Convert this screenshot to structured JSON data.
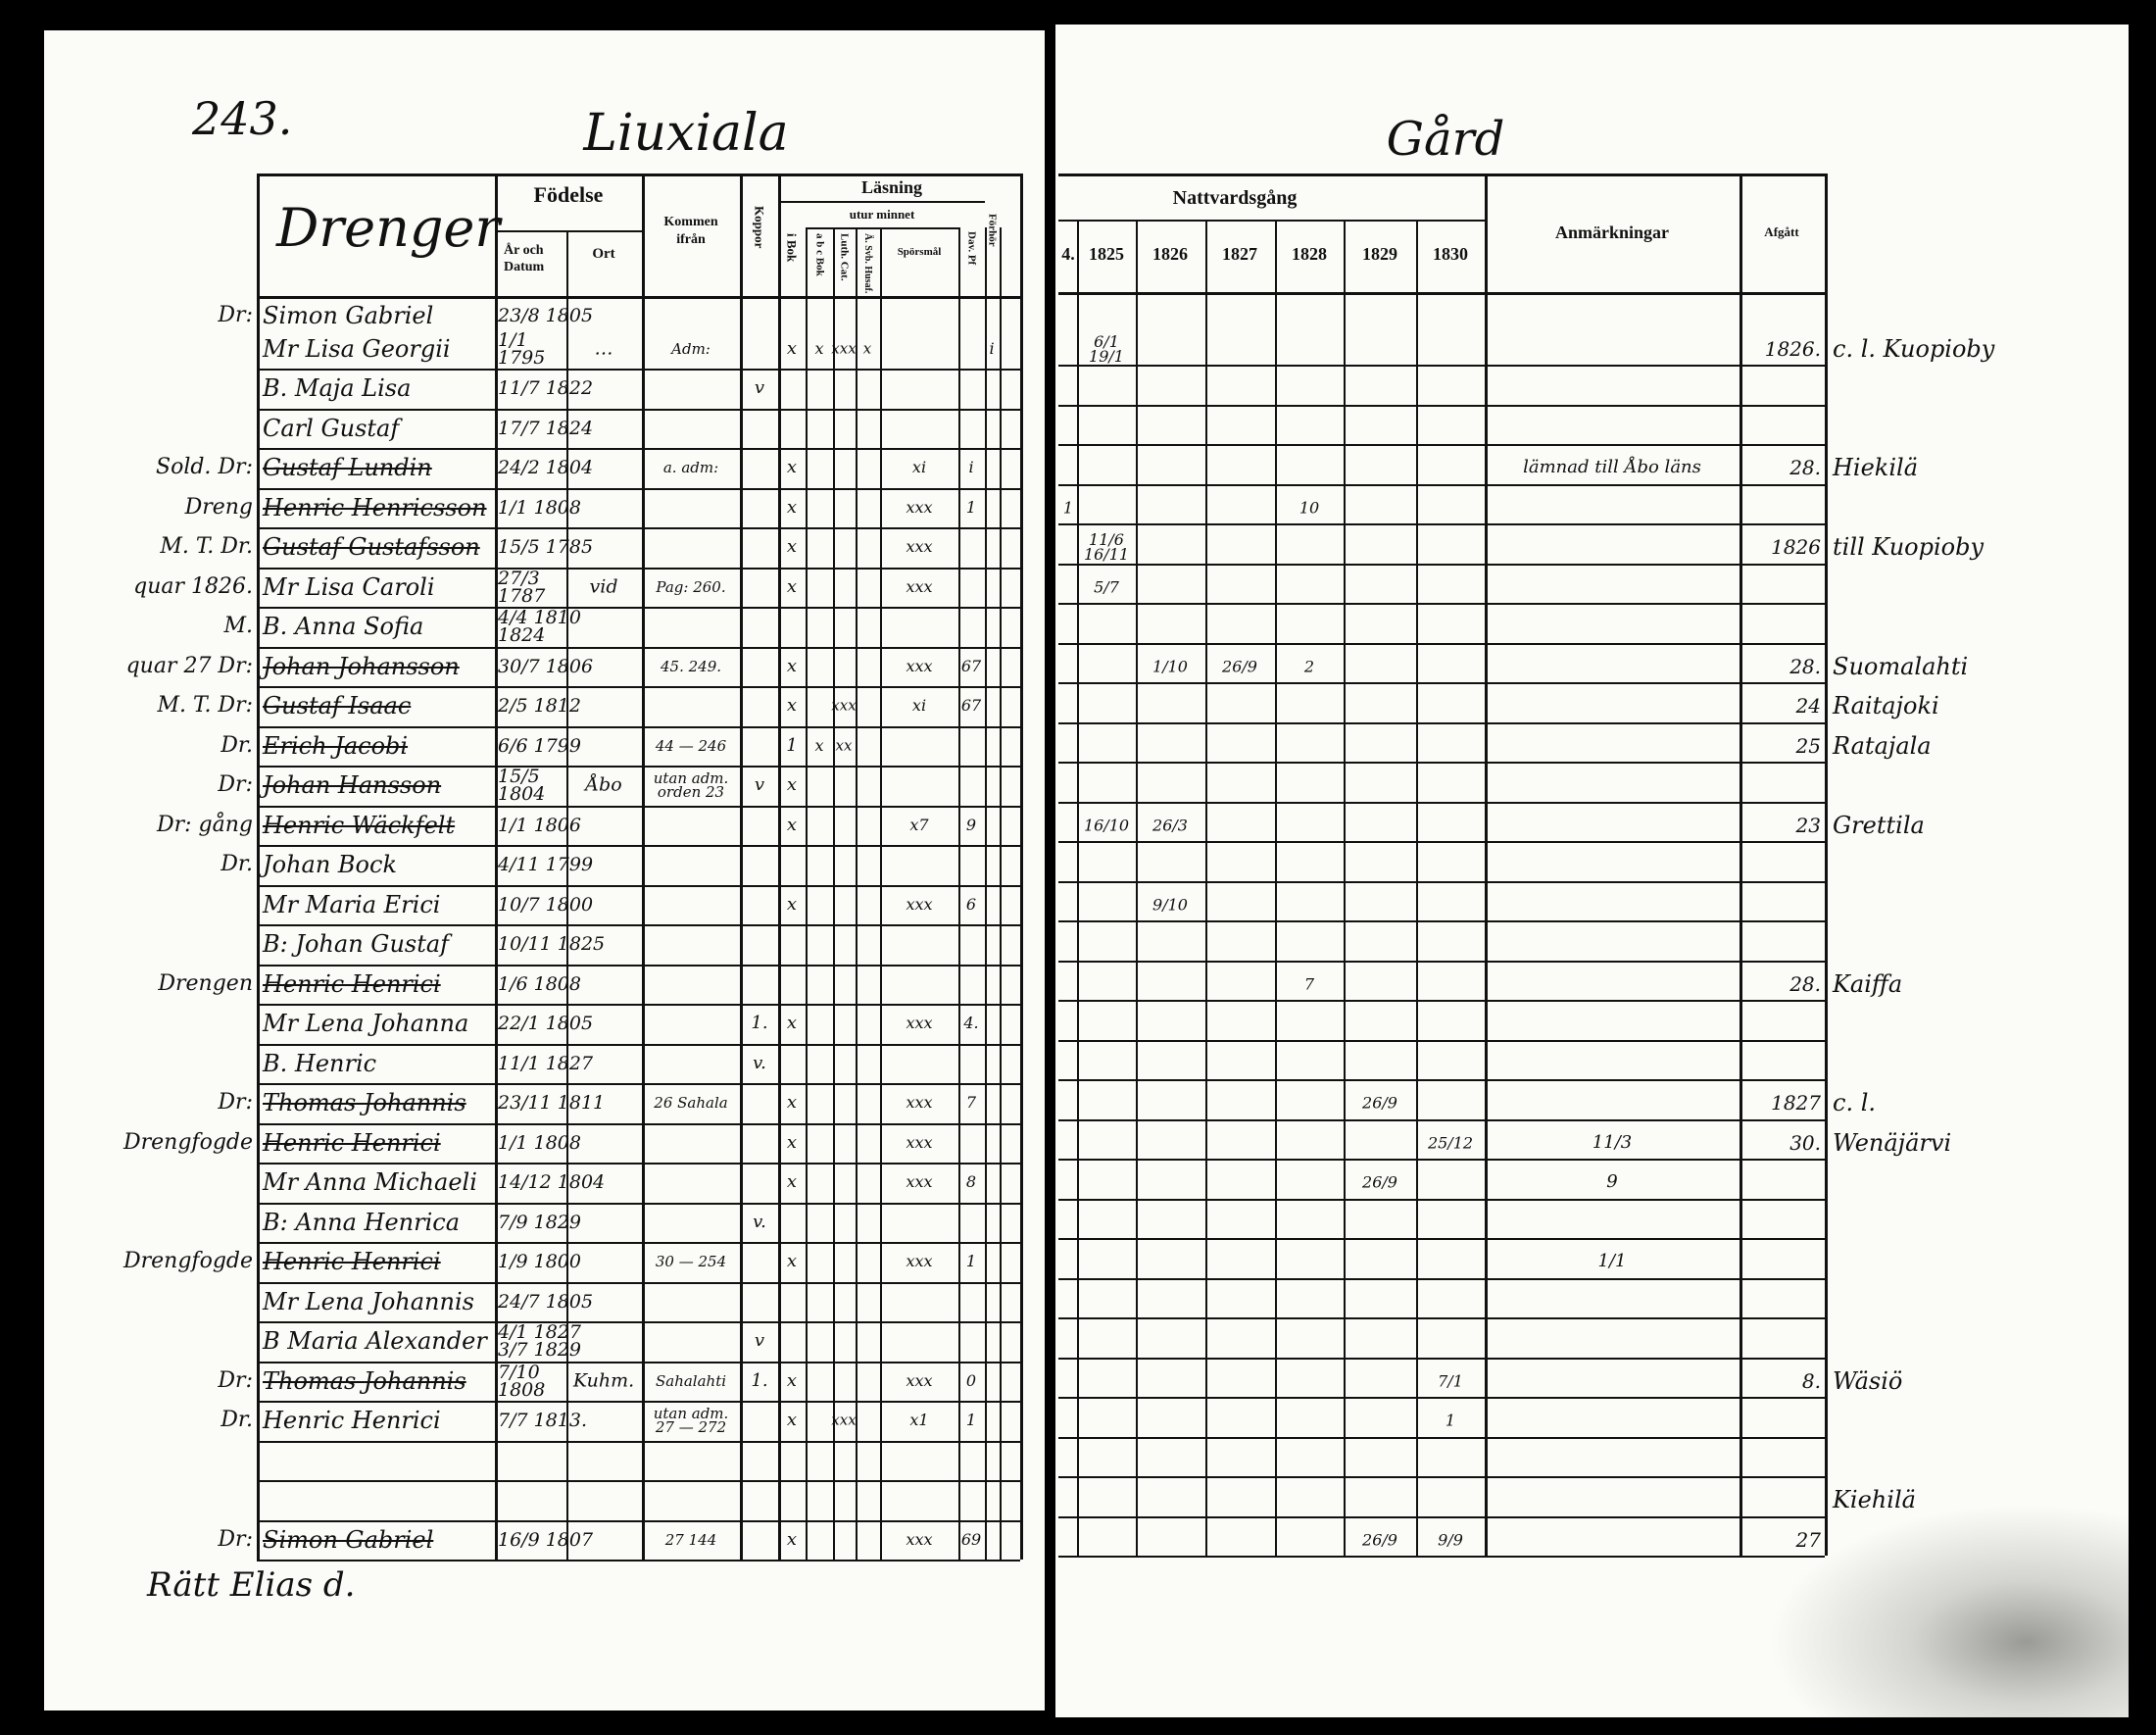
{
  "page_number": "243.",
  "title_left": "Liuxiala",
  "title_right": "Gård",
  "header_left": {
    "drenger": "Drenger",
    "fodelse": "Födelse",
    "ar_och_datum": "År och Datum",
    "ort": "Ort",
    "kommen_ifran": "Kommen ifrån",
    "koppor": "Koppor",
    "lasning": "Läsning",
    "utur_minnet": "utur minnet",
    "i_bok": "i Bok",
    "abc_bok": "a b c Bok",
    "luth_cat": "Luth. Cat.",
    "a_svb_husaf": "Ä. Svb. Husaf.",
    "sporsmal": "Spörsmål",
    "dav_pf": "Dav. Pf",
    "forhor": "Förhör"
  },
  "header_right": {
    "nattvardsgang": "Nattvardsgång",
    "years": [
      "4.",
      "1825",
      "1826",
      "1827",
      "1828",
      "1829",
      "1830"
    ],
    "anmarkningar": "Anmärkningar",
    "afgatt": "Afgått"
  },
  "rows": [
    {
      "margin": "Dr:",
      "name": "Simon Gabriel",
      "birth": "23/8 1805",
      "struck": false
    },
    {
      "margin": "",
      "name": "Mr Lisa Georgii",
      "birth": "1/1 1795",
      "place": "…",
      "from": "Adm:",
      "ibok": "x",
      "abc": "x",
      "luth": "xxx",
      "asv": "x",
      "forhor": "i",
      "comm": {
        "1825": "6/1 19/1"
      },
      "afgatt": "1826.",
      "dest": "c. l. Kuopioby",
      "struck": false
    },
    {
      "margin": "",
      "name": "B. Maja Lisa",
      "birth": "11/7 1822",
      "koppor": "v",
      "struck": false
    },
    {
      "margin": "",
      "name": "Carl Gustaf",
      "birth": "17/7 1824",
      "struck": false
    },
    {
      "margin": "Sold. Dr:",
      "name": "Gustaf Lundin",
      "birth": "24/2 1804",
      "from": "a. adm:",
      "ibok": "x",
      "sp": "xi",
      "dav": "i",
      "anm": "lämnad till Åbo läns",
      "afgatt": "28.",
      "dest": "Hiekilä",
      "struck": true
    },
    {
      "margin": "Dreng",
      "name": "Henric Henricsson",
      "birth": "1/1 1808",
      "ibok": "x",
      "sp": "xxx",
      "dav": "1",
      "comm": {
        "1824": "1",
        "1828": "10"
      },
      "struck": true
    },
    {
      "margin": "M. T. Dr.",
      "name": "Gustaf Gustafsson",
      "birth": "15/5 1785",
      "ibok": "x",
      "sp": "xxx",
      "comm": {
        "1825": "11/6 16/11"
      },
      "afgatt": "1826",
      "dest": "till Kuopioby",
      "struck": true
    },
    {
      "margin": "quar 1826.",
      "name": "Mr Lisa Caroli",
      "birth": "27/3 1787",
      "place": "vid",
      "from": "Pag: 260.",
      "ibok": "x",
      "sp": "xxx",
      "comm": {
        "1825": "5/7"
      },
      "struck": false
    },
    {
      "margin": "M.",
      "name": "B. Anna Sofia",
      "birth": "4/4 1810 1824",
      "struck": false
    },
    {
      "margin": "quar 27 Dr:",
      "name": "Johan Johansson",
      "birth": "30/7 1806",
      "from": "45. 249.",
      "ibok": "x",
      "sp": "xxx",
      "dav": "67",
      "comm": {
        "1826": "1/10",
        "1827": "26/9",
        "1828": "2"
      },
      "afgatt": "28.",
      "dest": "Suomalahti",
      "struck": true
    },
    {
      "margin": "M. T. Dr:",
      "name": "Gustaf Isaac",
      "birth": "2/5 1812",
      "ibok": "x",
      "luth": "xxx",
      "sp": "xi",
      "dav": "67",
      "afgatt": "24",
      "dest": "Raitajoki",
      "struck": true
    },
    {
      "margin": "Dr.",
      "name": "Erich Jacobi",
      "birth": "6/6 1799",
      "from": "44 — 246",
      "ibok": "1",
      "abc": "x",
      "luth": "xx",
      "afgatt": "25",
      "dest": "Ratajala",
      "struck": true
    },
    {
      "margin": "Dr:",
      "name": "Johan Hansson",
      "birth": "15/5 1804",
      "place": "Åbo",
      "from": "utan adm. orden 23",
      "koppor": "v",
      "ibok": "x",
      "struck": true
    },
    {
      "margin": "Dr: gång",
      "name": "Henric Wäckfelt",
      "birth": "1/1 1806",
      "ibok": "x",
      "sp": "x7",
      "dav": "9",
      "comm": {
        "1825": "16/10",
        "1826": "26/3"
      },
      "afgatt": "23",
      "dest": "Grettila",
      "struck": true
    },
    {
      "margin": "Dr.",
      "name": "Johan Bock",
      "birth": "4/11 1799",
      "struck": false
    },
    {
      "margin": "",
      "name": "Mr Maria Erici",
      "birth": "10/7 1800",
      "ibok": "x",
      "sp": "xxx",
      "dav": "6",
      "comm": {
        "1826": "9/10"
      },
      "struck": false
    },
    {
      "margin": "",
      "name": "B: Johan Gustaf",
      "birth": "10/11 1825",
      "struck": false
    },
    {
      "margin": "Drengen",
      "name": "Henric Henrici",
      "birth": "1/6 1808",
      "comm": {
        "1828": "7"
      },
      "afgatt": "28.",
      "dest": "Kaiffa",
      "struck": true
    },
    {
      "margin": "",
      "name": "Mr Lena Johanna",
      "birth": "22/1 1805",
      "koppor": "1.",
      "ibok": "x",
      "sp": "xxx",
      "dav": "4.",
      "struck": false
    },
    {
      "margin": "",
      "name": "B. Henric",
      "birth": "11/1 1827",
      "koppor": "v.",
      "struck": false
    },
    {
      "margin": "Dr:",
      "name": "Thomas Johannis",
      "birth": "23/11 1811",
      "from": "26 Sahala",
      "ibok": "x",
      "sp": "xxx",
      "dav": "7",
      "comm": {
        "1829": "26/9"
      },
      "afgatt": "1827",
      "dest": "c. l.",
      "struck": true
    },
    {
      "margin": "Drengfogde",
      "name": "Henric Henrici",
      "birth": "1/1 1808",
      "ibok": "x",
      "sp": "xxx",
      "comm": {
        "1830": "25/12"
      },
      "anm": "11/3",
      "afgatt": "30.",
      "dest": "Wenäjärvi",
      "struck": true
    },
    {
      "margin": "",
      "name": "Mr Anna Michaeli",
      "birth": "14/12 1804",
      "ibok": "x",
      "sp": "xxx",
      "dav": "8",
      "comm": {
        "1829": "26/9"
      },
      "anm": "9",
      "struck": false
    },
    {
      "margin": "",
      "name": "B: Anna Henrica",
      "birth": "7/9 1829",
      "koppor": "v.",
      "struck": false
    },
    {
      "margin": "Drengfogde",
      "name": "Henric Henrici",
      "birth": "1/9 1800",
      "from": "30 — 254",
      "ibok": "x",
      "sp": "xxx",
      "dav": "1",
      "anm": "1/1",
      "struck": true
    },
    {
      "margin": "",
      "name": "Mr Lena Johannis",
      "birth": "24/7 1805",
      "struck": false
    },
    {
      "margin": "",
      "name": "B Maria Alexander",
      "birth": "4/1 1827 3/7 1829",
      "koppor": "v",
      "struck": false
    },
    {
      "margin": "Dr:",
      "name": "Thomas Johannis",
      "birth": "7/10 1808",
      "place": "Kuhm.",
      "from": "Sahalahti",
      "koppor": "1.",
      "ibok": "x",
      "sp": "xxx",
      "dav": "0",
      "comm": {
        "1830": "7/1"
      },
      "afgatt": "8.",
      "dest": "Wäsiö",
      "struck": true
    },
    {
      "margin": "Dr.",
      "name": "Henric Henrici",
      "birth": "7/7 1813.",
      "from": "utan adm. 27 — 272",
      "ibok": "x",
      "luth": "xxx",
      "sp": "x1",
      "dav": "1",
      "comm": {
        "1830": "1"
      },
      "struck": false
    },
    {
      "margin": "",
      "name": "",
      "birth": "",
      "struck": false
    },
    {
      "margin": "",
      "name": "",
      "birth": "",
      "dest": "Kiehilä",
      "struck": false
    },
    {
      "margin": "Dr:",
      "name": "Simon Gabriel",
      "birth": "16/9 1807",
      "from": "27 144",
      "ibok": "x",
      "sp": "xxx",
      "dav": "69",
      "comm": {
        "1829": "26/9",
        "1830": "9/9"
      },
      "afgatt": "27",
      "struck": true
    }
  ],
  "footer_note": "Rätt Elias d."
}
